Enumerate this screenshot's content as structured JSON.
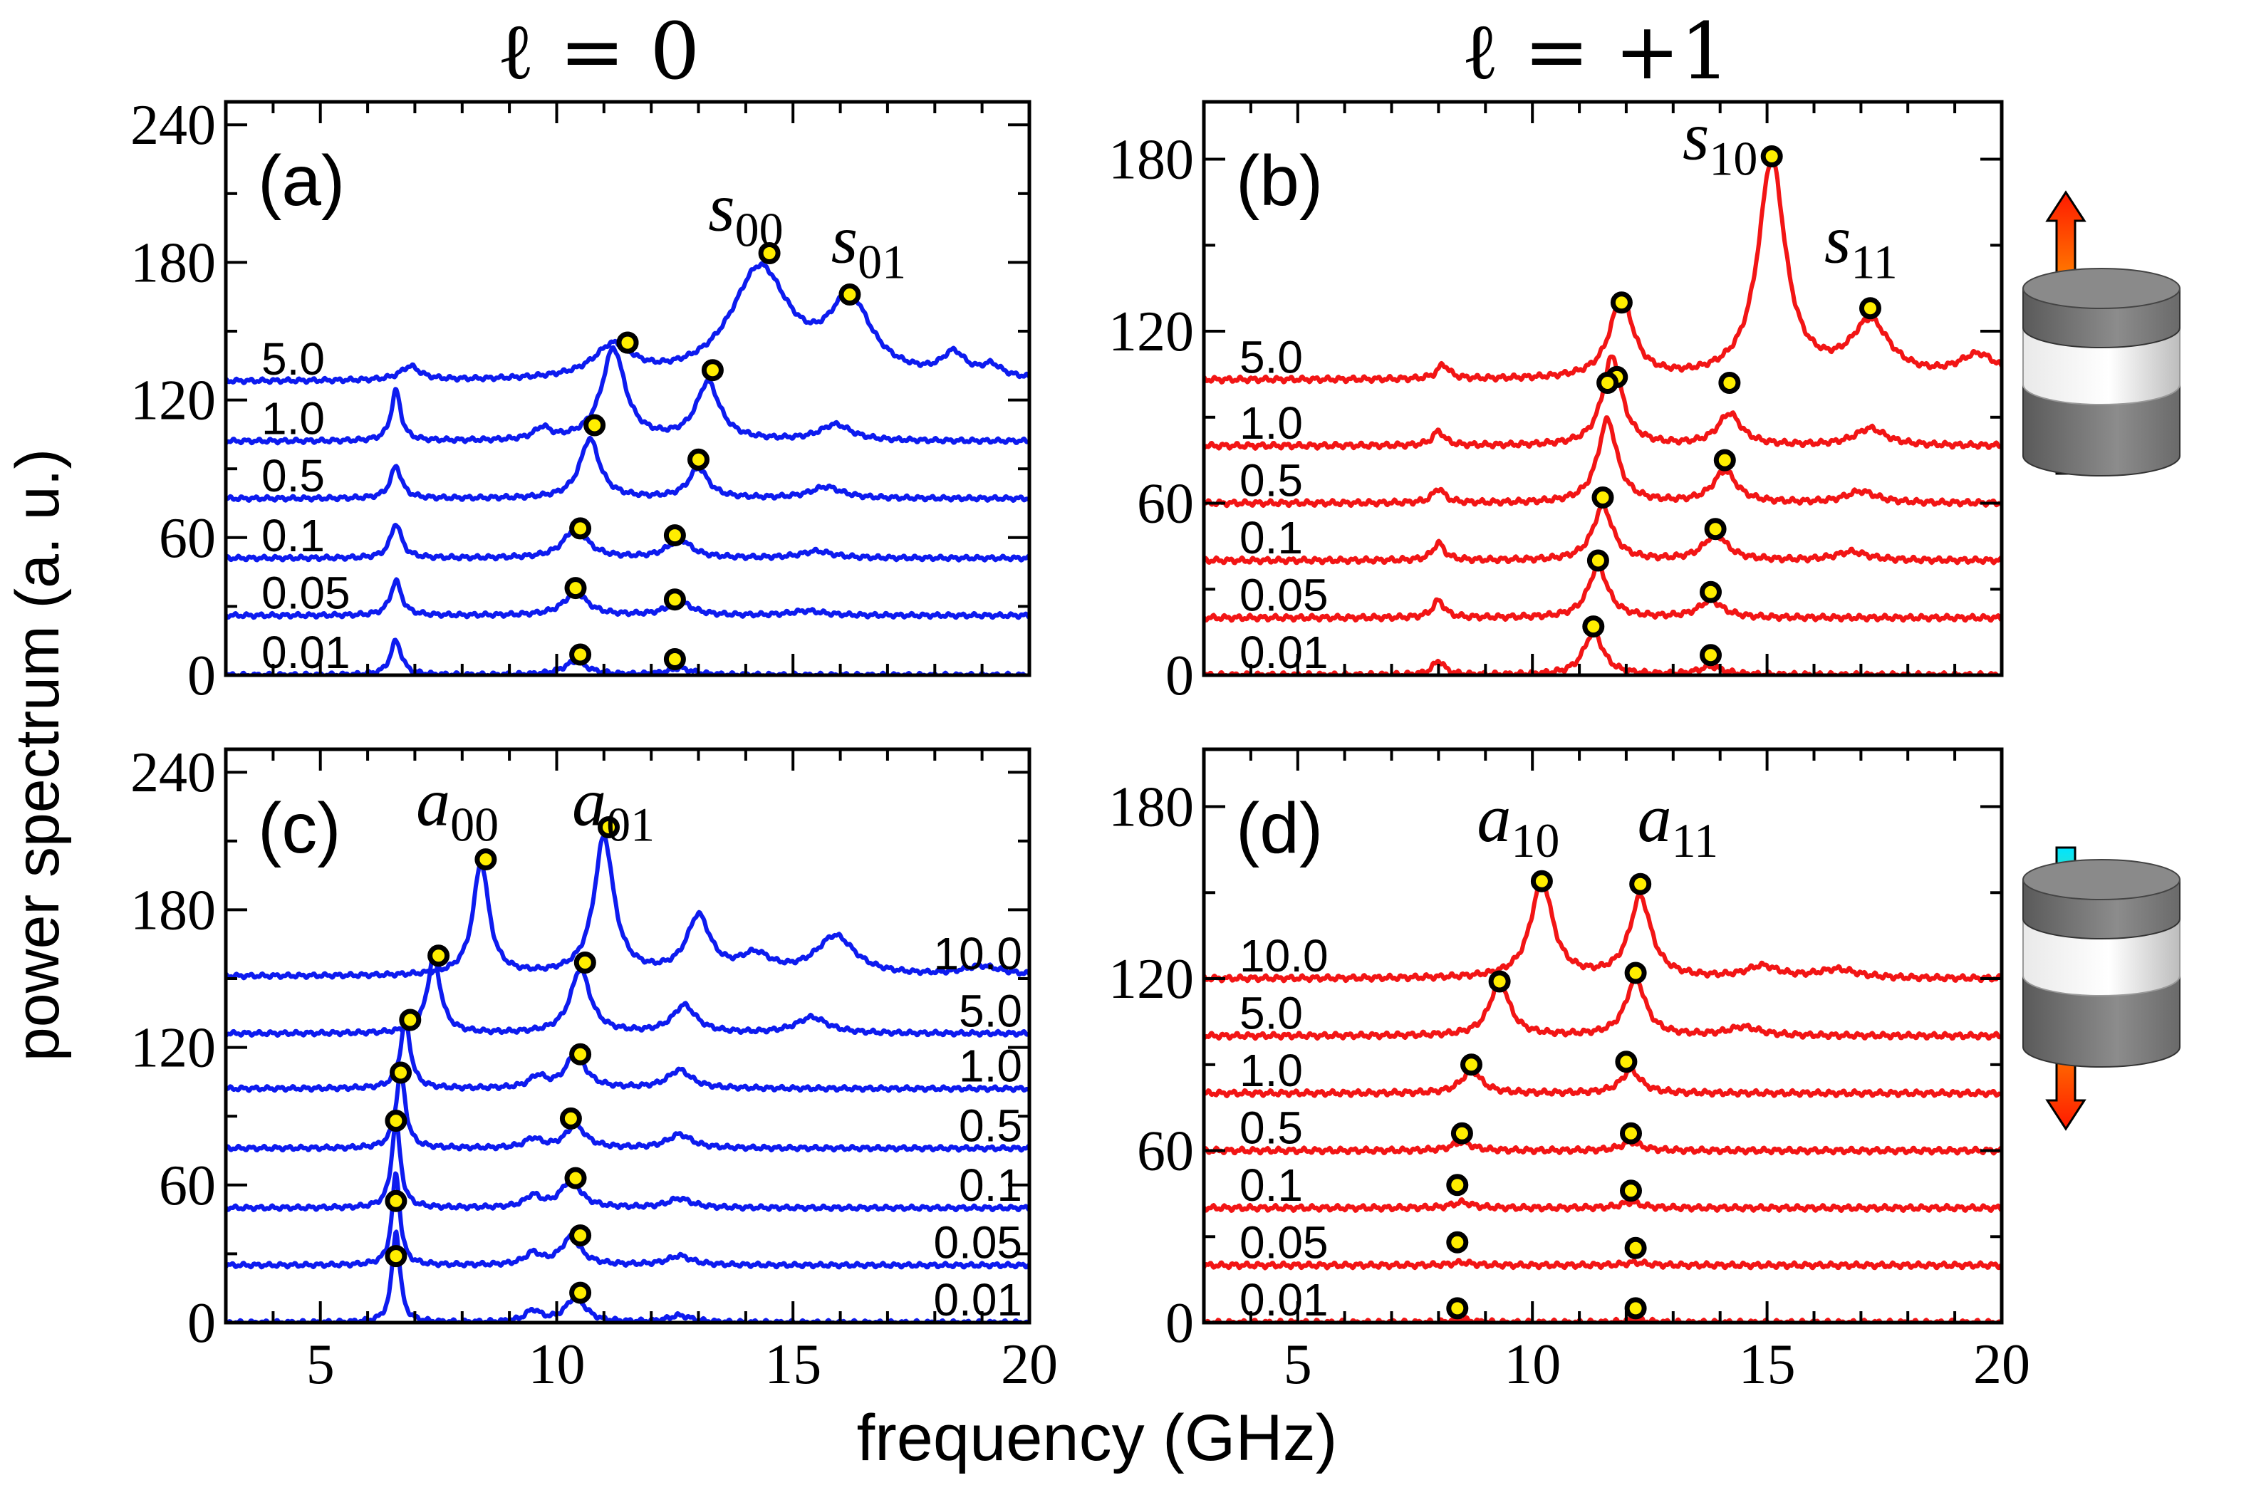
{
  "figure": {
    "col_titles": [
      "ℓ = 0",
      "ℓ = +1"
    ],
    "ylabel": "power spectrum (a. u.)",
    "xlabel": "frequency (GHz)",
    "colors": {
      "blue": "#0d1bef",
      "red": "#f21515",
      "marker_fill": "#ffee00",
      "marker_edge": "#000000"
    },
    "icons": [
      {
        "name": "cylinder-up-arrow-icon",
        "direction": "up"
      },
      {
        "name": "cylinder-down-arrow-icon",
        "direction": "down"
      }
    ]
  },
  "chart_data": [
    {
      "type": "line",
      "panel": "(a)",
      "color": "blue",
      "xlim": [
        3,
        20
      ],
      "ylim": [
        0,
        250
      ],
      "xticks": [
        5,
        10,
        15,
        20
      ],
      "yticks": [
        0,
        60,
        120,
        180,
        240
      ],
      "show_xtick_labels": false,
      "curve_labels": [
        "5.0",
        "1.0",
        "0.5",
        "0.1",
        "0.05",
        "0.01"
      ],
      "offsets": [
        128,
        102,
        77,
        51,
        26,
        0
      ],
      "annotations": [
        {
          "base": "s",
          "sub": "00",
          "x": 14.0,
          "y": 194
        },
        {
          "base": "s",
          "sub": "01",
          "x": 16.6,
          "y": 180
        }
      ],
      "series": [
        {
          "name": "5.0",
          "offset": 128,
          "peaks": [
            [
              6.9,
              6,
              0.25
            ],
            [
              11.2,
              14,
              0.5
            ],
            [
              14.3,
              48,
              0.75
            ],
            [
              16.2,
              32,
              0.55
            ],
            [
              18.4,
              10,
              0.3
            ],
            [
              19.2,
              5,
              0.25
            ]
          ],
          "markers": [
            [
              11.5,
              145
            ],
            [
              14.5,
              184
            ],
            [
              16.2,
              166
            ]
          ]
        },
        {
          "name": "1.0",
          "offset": 102,
          "peaks": [
            [
              6.6,
              22,
              0.12
            ],
            [
              9.7,
              5,
              0.2
            ],
            [
              11.2,
              40,
              0.3
            ],
            [
              13.2,
              25,
              0.3
            ],
            [
              15.9,
              7,
              0.4
            ]
          ],
          "markers": [
            [
              11.5,
              145
            ],
            [
              13.3,
              133
            ]
          ]
        },
        {
          "name": "0.5",
          "offset": 77,
          "peaks": [
            [
              6.6,
              14,
              0.14
            ],
            [
              10.7,
              26,
              0.25
            ],
            [
              13.0,
              13,
              0.25
            ],
            [
              15.7,
              5,
              0.4
            ]
          ],
          "markers": [
            [
              10.8,
              109
            ],
            [
              13.0,
              94
            ]
          ]
        },
        {
          "name": "0.1",
          "offset": 51,
          "peaks": [
            [
              6.6,
              15,
              0.14
            ],
            [
              10.4,
              13,
              0.3
            ],
            [
              12.6,
              8,
              0.3
            ],
            [
              15.5,
              3,
              0.4
            ]
          ],
          "markers": [
            [
              10.5,
              64
            ],
            [
              12.5,
              61
            ]
          ]
        },
        {
          "name": "0.05",
          "offset": 26,
          "peaks": [
            [
              6.6,
              15,
              0.14
            ],
            [
              10.4,
              10,
              0.3
            ],
            [
              12.6,
              6,
              0.3
            ],
            [
              15.3,
              2,
              0.4
            ]
          ],
          "markers": [
            [
              10.4,
              38
            ],
            [
              12.5,
              33
            ]
          ]
        },
        {
          "name": "0.01",
          "offset": 0,
          "peaks": [
            [
              6.6,
              15,
              0.14
            ],
            [
              10.4,
              6,
              0.3
            ],
            [
              12.6,
              3,
              0.3
            ]
          ],
          "markers": [
            [
              10.5,
              9
            ],
            [
              12.5,
              7
            ]
          ]
        }
      ]
    },
    {
      "type": "line",
      "panel": "(b)",
      "color": "red",
      "xlim": [
        3,
        20
      ],
      "ylim": [
        0,
        200
      ],
      "xticks": [
        5,
        10,
        15,
        20
      ],
      "yticks": [
        0,
        60,
        120,
        180
      ],
      "show_xtick_labels": false,
      "curve_labels": [
        "5.0",
        "1.0",
        "0.5",
        "0.1",
        "0.05",
        "0.01"
      ],
      "offsets": [
        103,
        80,
        60,
        40,
        20,
        0
      ],
      "annotations": [
        {
          "base": "s",
          "sub": "10",
          "x": 14.0,
          "y": 180
        },
        {
          "base": "s",
          "sub": "11",
          "x": 17.0,
          "y": 144
        }
      ],
      "series": [
        {
          "name": "5.0",
          "offset": 103,
          "peaks": [
            [
              8.1,
              5,
              0.15
            ],
            [
              11.9,
              28,
              0.3
            ],
            [
              15.1,
              76,
              0.35
            ],
            [
              17.2,
              19,
              0.5
            ],
            [
              19.5,
              8,
              0.5
            ]
          ],
          "markers": [
            [
              11.9,
              130
            ],
            [
              15.1,
              181
            ],
            [
              17.2,
              128
            ]
          ]
        },
        {
          "name": "1.0",
          "offset": 80,
          "peaks": [
            [
              8.0,
              5,
              0.15
            ],
            [
              11.7,
              31,
              0.25
            ],
            [
              14.2,
              11,
              0.3
            ],
            [
              17.2,
              6,
              0.4
            ]
          ],
          "markers": [
            [
              11.8,
              104
            ],
            [
              14.2,
              102
            ]
          ]
        },
        {
          "name": "0.5",
          "offset": 60,
          "peaks": [
            [
              8.0,
              5,
              0.15
            ],
            [
              11.6,
              29,
              0.25
            ],
            [
              14.1,
              11,
              0.3
            ],
            [
              17.0,
              4,
              0.4
            ]
          ],
          "markers": [
            [
              11.6,
              102
            ],
            [
              14.1,
              75
            ]
          ]
        },
        {
          "name": "0.1",
          "offset": 40,
          "peaks": [
            [
              8.0,
              6,
              0.15
            ],
            [
              11.5,
              19,
              0.25
            ],
            [
              13.9,
              9,
              0.3
            ],
            [
              16.8,
              3,
              0.4
            ]
          ],
          "markers": [
            [
              11.5,
              62
            ],
            [
              13.9,
              51
            ]
          ]
        },
        {
          "name": "0.05",
          "offset": 20,
          "peaks": [
            [
              8.0,
              6,
              0.15
            ],
            [
              11.4,
              18,
              0.25
            ],
            [
              13.8,
              6,
              0.3
            ]
          ],
          "markers": [
            [
              11.4,
              40
            ],
            [
              13.8,
              29
            ]
          ]
        },
        {
          "name": "0.01",
          "offset": 0,
          "peaks": [
            [
              8.0,
              5,
              0.15
            ],
            [
              11.3,
              15,
              0.25
            ],
            [
              13.8,
              3,
              0.3
            ]
          ],
          "markers": [
            [
              11.3,
              17
            ],
            [
              13.8,
              7
            ]
          ]
        }
      ]
    },
    {
      "type": "line",
      "panel": "(c)",
      "color": "blue",
      "xlim": [
        3,
        20
      ],
      "ylim": [
        0,
        250
      ],
      "xticks": [
        5,
        10,
        15,
        20
      ],
      "yticks": [
        0,
        60,
        120,
        180,
        240
      ],
      "show_xtick_labels": true,
      "curve_labels": [
        "10.0",
        "5.0",
        "1.0",
        "0.5",
        "0.1",
        "0.05",
        "0.01"
      ],
      "offsets": [
        151,
        126,
        102,
        76,
        50,
        25,
        0
      ],
      "annotations": [
        {
          "base": "a",
          "sub": "00",
          "x": 7.9,
          "y": 217
        },
        {
          "base": "a",
          "sub": "01",
          "x": 11.2,
          "y": 217
        }
      ],
      "series": [
        {
          "name": "10.0",
          "offset": 151,
          "peaks": [
            [
              8.4,
              49,
              0.2
            ],
            [
              11.0,
              60,
              0.25
            ],
            [
              13.0,
              25,
              0.3
            ],
            [
              14.2,
              8,
              0.4
            ],
            [
              15.9,
              17,
              0.5
            ],
            [
              19.0,
              4,
              0.5
            ]
          ],
          "markers": [
            [
              8.5,
              202
            ],
            [
              11.1,
              216
            ]
          ]
        },
        {
          "name": "5.0",
          "offset": 126,
          "peaks": [
            [
              7.4,
              33,
              0.17
            ],
            [
              10.5,
              28,
              0.25
            ],
            [
              12.7,
              12,
              0.3
            ],
            [
              15.4,
              7,
              0.4
            ]
          ],
          "markers": [
            [
              7.5,
              160
            ],
            [
              10.6,
              157
            ]
          ]
        },
        {
          "name": "1.0",
          "offset": 102,
          "peaks": [
            [
              6.8,
              29,
              0.13
            ],
            [
              9.6,
              5,
              0.2
            ],
            [
              10.4,
              15,
              0.25
            ],
            [
              12.6,
              8,
              0.3
            ]
          ],
          "markers": [
            [
              6.9,
              132
            ],
            [
              10.5,
              117
            ]
          ]
        },
        {
          "name": "0.5",
          "offset": 76,
          "peaks": [
            [
              6.7,
              33,
              0.12
            ],
            [
              9.5,
              4,
              0.2
            ],
            [
              10.4,
              10,
              0.25
            ],
            [
              12.6,
              6,
              0.3
            ]
          ],
          "markers": [
            [
              6.7,
              109
            ],
            [
              10.3,
              89
            ]
          ]
        },
        {
          "name": "0.1",
          "offset": 50,
          "peaks": [
            [
              6.6,
              38,
              0.11
            ],
            [
              9.5,
              5,
              0.2
            ],
            [
              10.3,
              12,
              0.25
            ],
            [
              12.6,
              4,
              0.3
            ]
          ],
          "markers": [
            [
              6.6,
              88
            ],
            [
              10.4,
              63
            ]
          ]
        },
        {
          "name": "0.05",
          "offset": 25,
          "peaks": [
            [
              6.6,
              40,
              0.1
            ],
            [
              9.5,
              5,
              0.2
            ],
            [
              10.3,
              12,
              0.25
            ],
            [
              12.6,
              4,
              0.3
            ]
          ],
          "markers": [
            [
              6.6,
              53
            ],
            [
              10.5,
              38
            ]
          ]
        },
        {
          "name": "0.01",
          "offset": 0,
          "peaks": [
            [
              6.6,
              40,
              0.1
            ],
            [
              9.5,
              5,
              0.2
            ],
            [
              10.4,
              11,
              0.25
            ],
            [
              12.6,
              3,
              0.3
            ]
          ],
          "markers": [
            [
              6.6,
              29
            ],
            [
              10.5,
              13
            ]
          ]
        }
      ]
    },
    {
      "type": "line",
      "panel": "(d)",
      "color": "red",
      "xlim": [
        3,
        20
      ],
      "ylim": [
        0,
        200
      ],
      "xticks": [
        5,
        10,
        15,
        20
      ],
      "yticks": [
        0,
        60,
        120,
        180
      ],
      "show_xtick_labels": true,
      "curve_labels": [
        "10.0",
        "5.0",
        "1.0",
        "0.5",
        "0.1",
        "0.05",
        "0.01"
      ],
      "offsets": [
        120,
        100,
        80,
        60,
        40,
        20,
        0
      ],
      "annotations": [
        {
          "base": "a",
          "sub": "10",
          "x": 9.7,
          "y": 168
        },
        {
          "base": "a",
          "sub": "11",
          "x": 13.1,
          "y": 168
        }
      ],
      "series": [
        {
          "name": "10.0",
          "offset": 120,
          "peaks": [
            [
              10.2,
              34,
              0.28
            ],
            [
              12.3,
              28,
              0.28
            ],
            [
              14.9,
              4,
              0.4
            ],
            [
              16.5,
              3,
              0.5
            ]
          ],
          "markers": [
            [
              10.2,
              154
            ],
            [
              12.3,
              153
            ]
          ]
        },
        {
          "name": "5.0",
          "offset": 100,
          "peaks": [
            [
              9.3,
              19,
              0.25
            ],
            [
              12.2,
              20,
              0.25
            ],
            [
              14.5,
              3,
              0.4
            ]
          ],
          "markers": [
            [
              9.3,
              119
            ],
            [
              12.2,
              122
            ]
          ]
        },
        {
          "name": "1.0",
          "offset": 80,
          "peaks": [
            [
              8.7,
              8,
              0.25
            ],
            [
              12.1,
              8,
              0.25
            ]
          ],
          "markers": [
            [
              8.7,
              90
            ],
            [
              12.0,
              91
            ]
          ]
        },
        {
          "name": "0.5",
          "offset": 60,
          "peaks": [
            [
              8.5,
              3,
              0.25
            ],
            [
              12.1,
              3,
              0.25
            ]
          ],
          "markers": [
            [
              8.5,
              66
            ],
            [
              12.1,
              66
            ]
          ]
        },
        {
          "name": "0.1",
          "offset": 40,
          "peaks": [
            [
              8.5,
              2,
              0.25
            ],
            [
              12.1,
              2,
              0.25
            ]
          ],
          "markers": [
            [
              8.4,
              48
            ],
            [
              12.1,
              46
            ]
          ]
        },
        {
          "name": "0.05",
          "offset": 20,
          "peaks": [
            [
              8.5,
              1,
              0.25
            ],
            [
              12.2,
              1,
              0.25
            ]
          ],
          "markers": [
            [
              8.4,
              28
            ],
            [
              12.2,
              26
            ]
          ]
        },
        {
          "name": "0.01",
          "offset": 0,
          "peaks": [
            [
              8.5,
              1,
              0.25
            ],
            [
              12.2,
              1,
              0.25
            ]
          ],
          "markers": [
            [
              8.4,
              5
            ],
            [
              12.2,
              5
            ]
          ]
        }
      ]
    }
  ]
}
